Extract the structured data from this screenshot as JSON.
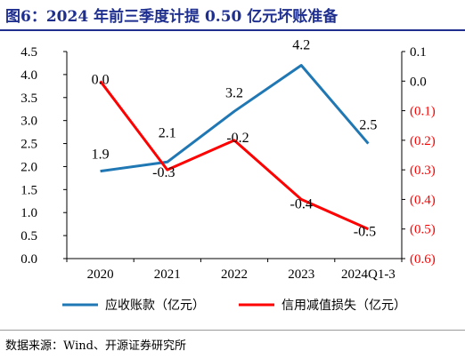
{
  "title": "图6：2024 年前三季度计提 0.50 亿元坏账准备",
  "source": "数据来源：Wind、开源证券研究所",
  "colors": {
    "title": "#1f2f8f",
    "series1": "#1f77b4",
    "series2": "#ff0000",
    "axis": "#000000"
  },
  "chart_data": {
    "type": "line",
    "categories": [
      "2020",
      "2021",
      "2022",
      "2023",
      "2024Q1-3"
    ],
    "series": [
      {
        "name": "应收账款（亿元）",
        "axis": "left",
        "values": [
          1.9,
          2.1,
          3.2,
          4.2,
          2.5
        ],
        "labels": [
          "1.9",
          "2.1",
          "3.2",
          "4.2",
          "2.5"
        ]
      },
      {
        "name": "信用减值损失（亿元）",
        "axis": "right",
        "values": [
          0.0,
          -0.3,
          -0.2,
          -0.4,
          -0.5
        ],
        "labels": [
          "0.0",
          "-0.3",
          "-0.2",
          "-0.4",
          "-0.5"
        ]
      }
    ],
    "y_left": {
      "range": [
        0,
        4.5
      ],
      "ticks": [
        "0.0",
        "0.5",
        "1.0",
        "1.5",
        "2.0",
        "2.5",
        "3.0",
        "3.5",
        "4.0",
        "4.5"
      ]
    },
    "y_right": {
      "range": [
        -0.6,
        0.1
      ],
      "ticks": [
        "0.1",
        "0.0",
        "(0.1)",
        "(0.2)",
        "(0.3)",
        "(0.4)",
        "(0.5)",
        "(0.6)"
      ],
      "tick_color": "#ff0000"
    },
    "legend_position": "bottom",
    "grid": false
  }
}
